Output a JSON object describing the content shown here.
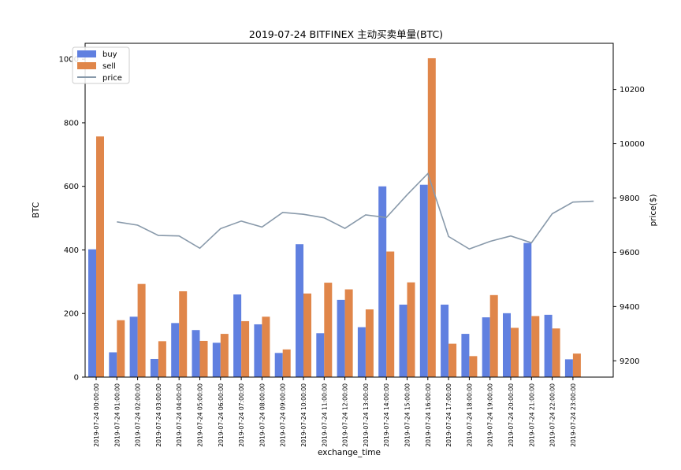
{
  "chart_data": {
    "type": "bar",
    "title": "2019-07-24 BITFINEX 主动买卖单量(BTC)",
    "xlabel": "exchange_time",
    "ylabel": "BTC",
    "y2label": "price($)",
    "ylim": [
      0,
      1050
    ],
    "y2lim": [
      9140,
      10370
    ],
    "yticks": [
      0,
      200,
      400,
      600,
      800,
      1000
    ],
    "y2ticks": [
      9200,
      9400,
      9600,
      9800,
      10000,
      10200
    ],
    "legend": "top-left",
    "grid": false,
    "colors": {
      "buy": "#6080e0",
      "sell": "#e0864a",
      "price": "#8899aa"
    },
    "categories": [
      "2019-07-24 00:00:00",
      "2019-07-24 01:00:00",
      "2019-07-24 02:00:00",
      "2019-07-24 03:00:00",
      "2019-07-24 04:00:00",
      "2019-07-24 05:00:00",
      "2019-07-24 06:00:00",
      "2019-07-24 07:00:00",
      "2019-07-24 08:00:00",
      "2019-07-24 09:00:00",
      "2019-07-24 10:00:00",
      "2019-07-24 11:00:00",
      "2019-07-24 12:00:00",
      "2019-07-24 13:00:00",
      "2019-07-24 14:00:00",
      "2019-07-24 15:00:00",
      "2019-07-24 16:00:00",
      "2019-07-24 17:00:00",
      "2019-07-24 18:00:00",
      "2019-07-24 19:00:00",
      "2019-07-24 20:00:00",
      "2019-07-24 21:00:00",
      "2019-07-24 22:00:00",
      "2019-07-24 23:00:00"
    ],
    "series": [
      {
        "name": "buy",
        "type": "bar",
        "values": [
          402,
          78,
          190,
          57,
          170,
          148,
          108,
          260,
          166,
          76,
          418,
          138,
          243,
          157,
          600,
          228,
          605,
          228,
          136,
          188,
          201,
          422,
          196,
          56
        ]
      },
      {
        "name": "sell",
        "type": "bar",
        "values": [
          757,
          179,
          293,
          113,
          270,
          114,
          136,
          176,
          190,
          87,
          263,
          297,
          276,
          213,
          395,
          298,
          1003,
          105,
          66,
          258,
          155,
          192,
          153,
          74
        ]
      },
      {
        "name": "price",
        "type": "line",
        "axis": "right",
        "values": [
          9712,
          9700,
          9662,
          9660,
          9615,
          9687,
          9715,
          9693,
          9747,
          9740,
          9727,
          9688,
          9738,
          9728,
          9812,
          9890,
          9658,
          9612,
          9640,
          9660,
          9635,
          9742,
          9785,
          9788
        ]
      }
    ]
  }
}
